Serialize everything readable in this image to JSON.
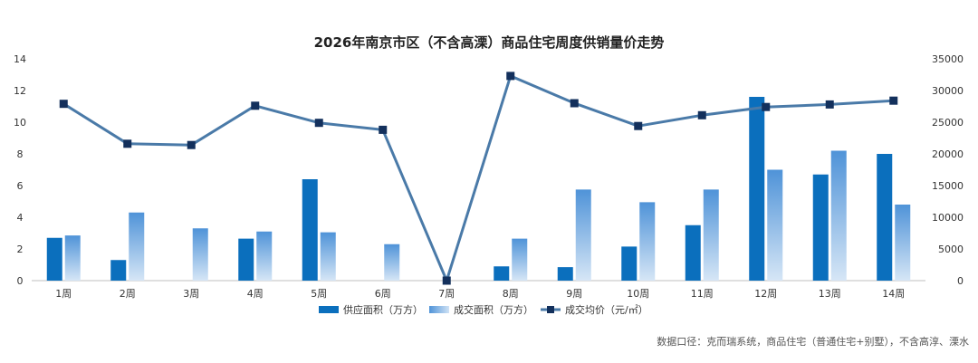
{
  "chart_data": {
    "type": "bar",
    "title": "2026年南京市区（不含高溧）商品住宅周度供销量价走势",
    "categories": [
      "1周",
      "2周",
      "3周",
      "4周",
      "5周",
      "6周",
      "7周",
      "8周",
      "9周",
      "10周",
      "11周",
      "12周",
      "13周",
      "14周"
    ],
    "series": [
      {
        "name": "供应面积（万方）",
        "type": "bar",
        "axis": "left",
        "color": "#0b6fbd",
        "values": [
          2.7,
          1.3,
          0,
          2.65,
          6.4,
          0,
          0,
          0.9,
          0.85,
          2.15,
          3.5,
          11.6,
          6.7,
          8.0
        ]
      },
      {
        "name": "成交面积（万方）",
        "type": "bar",
        "axis": "left",
        "color": "#5b9bd5",
        "values": [
          2.85,
          4.3,
          3.3,
          3.1,
          3.05,
          2.3,
          0,
          2.65,
          5.75,
          4.95,
          5.75,
          7.0,
          8.2,
          4.8
        ]
      },
      {
        "name": "成交均价（元/㎡）",
        "type": "line",
        "axis": "right",
        "color": "#4a7aa8",
        "values": [
          27900,
          21600,
          21400,
          27600,
          24900,
          23800,
          0,
          32300,
          28000,
          24400,
          26100,
          27400,
          27800,
          28400
        ]
      }
    ],
    "y_left": {
      "min": 0,
      "max": 14,
      "ticks": [
        "0",
        "2",
        "4",
        "6",
        "8",
        "10",
        "12",
        "14"
      ]
    },
    "y_right": {
      "min": 0,
      "max": 35000,
      "ticks": [
        "0",
        "5000",
        "10000",
        "15000",
        "20000",
        "25000",
        "30000",
        "35000"
      ]
    },
    "legend_position": "bottom",
    "grid": false
  },
  "source_note": "数据口径：克而瑞系统，商品住宅（普通住宅+别墅），不含高淳、溧水"
}
